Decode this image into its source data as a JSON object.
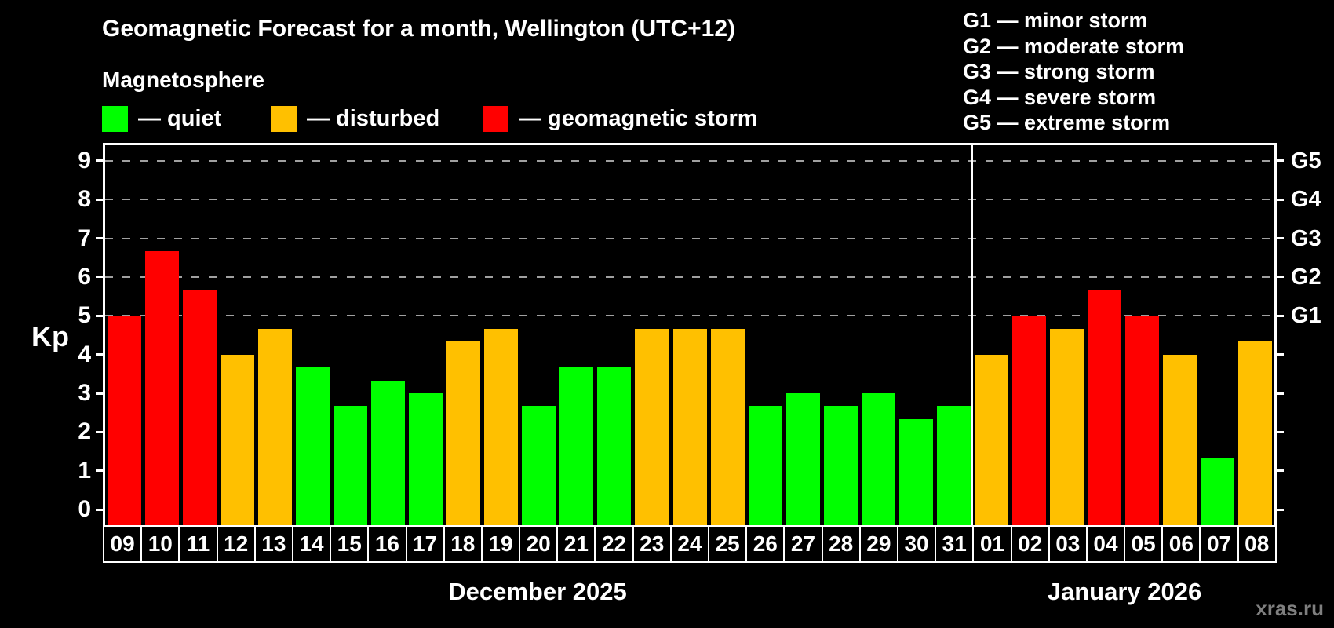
{
  "header": {
    "title": "Geomagnetic Forecast for a month, Wellington (UTC+12)",
    "subtitle": "Magnetosphere"
  },
  "legend": {
    "items": [
      {
        "label": "— quiet",
        "state": "quiet"
      },
      {
        "label": "— disturbed",
        "state": "disturbed"
      },
      {
        "label": "— geomagnetic storm",
        "state": "storm"
      }
    ]
  },
  "g_legend": {
    "lines": [
      "G1 — minor storm",
      "G2 — moderate storm",
      "G3 — strong storm",
      "G4 — severe storm",
      "G5 — extreme storm"
    ]
  },
  "axes": {
    "y_label": "Kp",
    "y_ticks": [
      "0",
      "1",
      "2",
      "3",
      "4",
      "5",
      "6",
      "7",
      "8",
      "9"
    ],
    "g_ticks": [
      {
        "label": "G1",
        "kp": 5
      },
      {
        "label": "G2",
        "kp": 6
      },
      {
        "label": "G3",
        "kp": 7
      },
      {
        "label": "G4",
        "kp": 8
      },
      {
        "label": "G5",
        "kp": 9
      }
    ]
  },
  "months": [
    {
      "label": "December 2025",
      "days": 23
    },
    {
      "label": "January 2026",
      "days": 8
    }
  ],
  "watermark": "xras.ru",
  "colors": {
    "background": "#000000",
    "axis": "#ffffff",
    "gridline": "#a0a0a0",
    "quiet": "#00ff00",
    "disturbed": "#ffc000",
    "storm": "#ff0000",
    "watermark": "#7f7f7f"
  },
  "chart_data": {
    "type": "bar",
    "title": "Geomagnetic Forecast for a month, Wellington (UTC+12)",
    "ylabel": "Kp",
    "ylim": [
      -0.4,
      9.4
    ],
    "gridlines_kp": [
      5,
      6,
      7,
      8,
      9
    ],
    "legend_position": "top-left",
    "categories": [
      "09",
      "10",
      "11",
      "12",
      "13",
      "14",
      "15",
      "16",
      "17",
      "18",
      "19",
      "20",
      "21",
      "22",
      "23",
      "24",
      "25",
      "26",
      "27",
      "28",
      "29",
      "30",
      "31",
      "01",
      "02",
      "03",
      "04",
      "05",
      "06",
      "07",
      "08"
    ],
    "values": [
      5.0,
      6.67,
      5.67,
      4.0,
      4.67,
      3.67,
      2.67,
      3.33,
      3.0,
      4.33,
      4.67,
      2.67,
      3.67,
      3.67,
      4.67,
      4.67,
      4.67,
      2.67,
      3.0,
      2.67,
      3.0,
      2.33,
      2.67,
      4.0,
      5.0,
      4.67,
      5.67,
      5.0,
      4.0,
      1.33,
      4.33
    ],
    "states": [
      "storm",
      "storm",
      "storm",
      "disturbed",
      "disturbed",
      "quiet",
      "quiet",
      "quiet",
      "quiet",
      "disturbed",
      "disturbed",
      "quiet",
      "quiet",
      "quiet",
      "disturbed",
      "disturbed",
      "disturbed",
      "quiet",
      "quiet",
      "quiet",
      "quiet",
      "quiet",
      "quiet",
      "disturbed",
      "storm",
      "disturbed",
      "storm",
      "storm",
      "disturbed",
      "quiet",
      "disturbed"
    ]
  }
}
